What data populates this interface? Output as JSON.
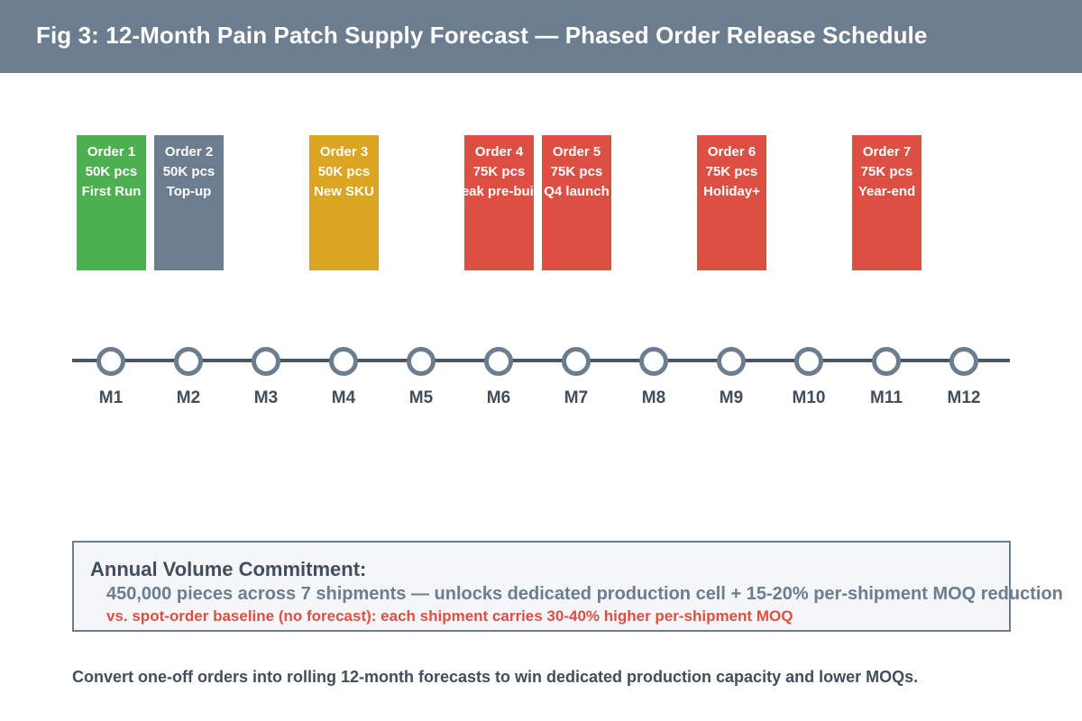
{
  "header": {
    "title": "Fig 3:  12-Month Pain Patch Supply Forecast — Phased Order Release Schedule"
  },
  "colors": {
    "header_bg": "#6c7d8f",
    "first_run": "#4caf50",
    "top_up": "#6c7d8f",
    "new_sku": "#daa520",
    "volume_75k": "#dd4f43"
  },
  "orders": [
    {
      "name": "Order 1",
      "qty": "50K pcs",
      "note": "First Run",
      "month": "M1",
      "color": "#4caf50"
    },
    {
      "name": "Order 2",
      "qty": "50K pcs",
      "note": "Top-up",
      "month": "M2",
      "color": "#6c7d8f"
    },
    {
      "name": "Order 3",
      "qty": "50K pcs",
      "note": "New SKU",
      "month": "M4",
      "color": "#daa520"
    },
    {
      "name": "Order 4",
      "qty": "75K pcs",
      "note": "Peak pre-build",
      "month": "M6",
      "color": "#dd4f43"
    },
    {
      "name": "Order 5",
      "qty": "75K pcs",
      "note": "Q4 launch",
      "month": "M7",
      "color": "#dd4f43"
    },
    {
      "name": "Order 6",
      "qty": "75K pcs",
      "note": "Holiday+",
      "month": "M9",
      "color": "#dd4f43"
    },
    {
      "name": "Order 7",
      "qty": "75K pcs",
      "note": "Year-end",
      "month": "M11",
      "color": "#dd4f43"
    }
  ],
  "timeline": {
    "months": [
      "M1",
      "M2",
      "M3",
      "M4",
      "M5",
      "M6",
      "M7",
      "M8",
      "M9",
      "M10",
      "M11",
      "M12"
    ]
  },
  "commitment": {
    "heading": "Annual Volume Commitment:",
    "line1": "450,000 pieces across 7 shipments — unlocks dedicated production cell + 15-20% per-shipment MOQ reduction",
    "line2": "vs. spot-order baseline (no forecast): each shipment carries 30-40% higher per-shipment MOQ"
  },
  "footer": {
    "text": "Convert one-off orders into rolling 12-month forecasts to win dedicated production capacity and lower MOQs."
  }
}
